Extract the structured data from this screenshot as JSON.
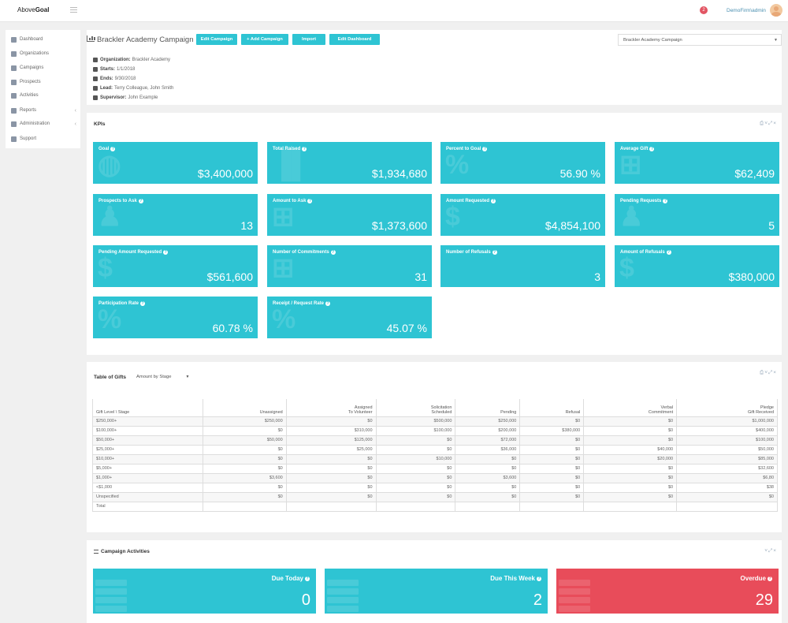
{
  "brand": {
    "part1": "Above",
    "part2": "Goal"
  },
  "topbar": {
    "notifications": "2",
    "user": "DemoFirm\\admin"
  },
  "sidebar": {
    "items": [
      {
        "label": "Dashboard",
        "icon": "dashboard-icon"
      },
      {
        "label": "Organizations",
        "icon": "building-icon"
      },
      {
        "label": "Campaigns",
        "icon": "bar-chart-icon"
      },
      {
        "label": "Prospects",
        "icon": "users-icon"
      },
      {
        "label": "Activities",
        "icon": "list-icon"
      },
      {
        "label": "Reports",
        "icon": "file-icon"
      },
      {
        "label": "Administration",
        "icon": "gear-icon"
      },
      {
        "label": "Support",
        "icon": "life-ring-icon"
      }
    ]
  },
  "header": {
    "title": "Brackler Academy Campaign",
    "buttons": {
      "edit_campaign": "Edit Campaign",
      "add_campaign": "+ Add Campaign",
      "import": "Import",
      "edit_dashboard": "Edit Dashboard"
    },
    "campaign_select": "Brackler Academy Campaign"
  },
  "info": {
    "organization_label": "Organization:",
    "organization": "Brackler Academy",
    "starts_label": "Starts:",
    "starts": "1/1/2018",
    "ends_label": "Ends:",
    "ends": "9/30/2018",
    "lead_label": "Lead:",
    "lead": "Terry Colleague, John Smith",
    "supervisor_label": "Supervisor:",
    "supervisor": "John Example"
  },
  "kpis": {
    "title": "KPIs",
    "tiles": [
      {
        "label": "Goal",
        "value": "$3,400,000",
        "icon": "globe-icon"
      },
      {
        "label": "Total Raised",
        "value": "$1,934,680",
        "icon": "bar-chart-icon"
      },
      {
        "label": "Percent to Goal",
        "value": "56.90 %",
        "icon": "percent-icon"
      },
      {
        "label": "Average Gift",
        "value": "$62,409",
        "icon": "gift-icon"
      },
      {
        "label": "Prospects to Ask",
        "value": "13",
        "icon": "bell-icon"
      },
      {
        "label": "Amount to Ask",
        "value": "$1,373,600",
        "icon": "gift-icon"
      },
      {
        "label": "Amount Requested",
        "value": "$4,854,100",
        "icon": "dollar-icon"
      },
      {
        "label": "Pending Requests",
        "value": "5",
        "icon": "bell-icon"
      },
      {
        "label": "Pending Amount Requested",
        "value": "$561,600",
        "icon": "dollar-icon"
      },
      {
        "label": "Number of Commitments",
        "value": "31",
        "icon": "gift-icon"
      },
      {
        "label": "Number of Refusals",
        "value": "3",
        "icon": "thumbs-down-icon"
      },
      {
        "label": "Amount of Refusals",
        "value": "$380,000",
        "icon": "dollar-icon"
      },
      {
        "label": "Participation Rate",
        "value": "60.78 %",
        "icon": "percent-icon"
      },
      {
        "label": "Receipt / Request Rate",
        "value": "45.07 %",
        "icon": "percent-icon"
      }
    ]
  },
  "gifts": {
    "title": "Table of Gifts",
    "filter": "Amount by Stage",
    "headers": [
      {
        "l1": "",
        "l2": "Gift Level \\ Stage"
      },
      {
        "l1": "",
        "l2": "Unassigned"
      },
      {
        "l1": "Assigned",
        "l2": "To Volunteer"
      },
      {
        "l1": "Solicitation",
        "l2": "Scheduled"
      },
      {
        "l1": "",
        "l2": "Pending"
      },
      {
        "l1": "",
        "l2": "Refusal"
      },
      {
        "l1": "Verbal",
        "l2": "Commitment"
      },
      {
        "l1": "Pledge",
        "l2": "Gift Received"
      }
    ],
    "rows": [
      [
        "$250,000+",
        "$250,000",
        "$0",
        "$500,000",
        "$250,000",
        "$0",
        "$0",
        "$1,000,000"
      ],
      [
        "$100,000+",
        "$0",
        "$310,000",
        "$100,000",
        "$200,000",
        "$380,000",
        "$0",
        "$400,000"
      ],
      [
        "$50,000+",
        "$50,000",
        "$125,000",
        "$0",
        "$72,000",
        "$0",
        "$0",
        "$100,000"
      ],
      [
        "$25,000+",
        "$0",
        "$25,000",
        "$0",
        "$36,000",
        "$0",
        "$40,000",
        "$50,000"
      ],
      [
        "$10,000+",
        "$0",
        "$0",
        "$10,000",
        "$0",
        "$0",
        "$20,000",
        "$85,000"
      ],
      [
        "$5,000+",
        "$0",
        "$0",
        "$0",
        "$0",
        "$0",
        "$0",
        "$32,600"
      ],
      [
        "$1,000+",
        "$3,600",
        "$0",
        "$0",
        "$3,600",
        "$0",
        "$0",
        "$6,80"
      ],
      [
        "<$1,000",
        "$0",
        "$0",
        "$0",
        "$0",
        "$0",
        "$0",
        "$38"
      ],
      [
        "Unspecified",
        "$0",
        "$0",
        "$0",
        "$0",
        "$0",
        "$0",
        "$0"
      ],
      [
        "Total",
        "",
        "",
        "",
        "",
        "",
        "",
        ""
      ]
    ]
  },
  "activities": {
    "title": "Campaign Activities",
    "tiles": [
      {
        "label": "Due Today",
        "value": "0",
        "color": "#2ec4d3"
      },
      {
        "label": "Due This Week",
        "value": "2",
        "color": "#2ec4d3"
      },
      {
        "label": "Overdue",
        "value": "29",
        "color": "#e84c5a"
      }
    ]
  }
}
